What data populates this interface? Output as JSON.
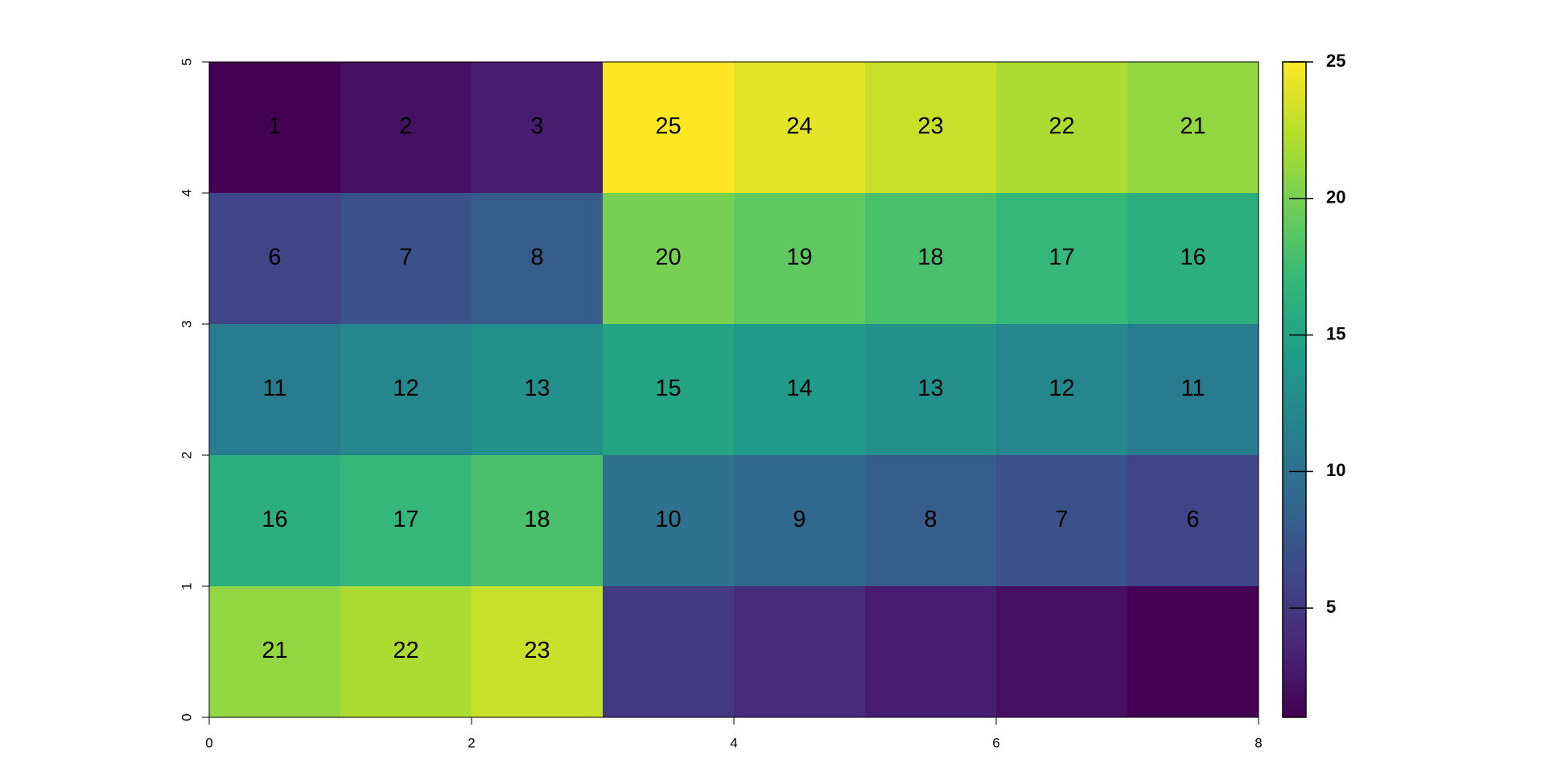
{
  "chart_data": {
    "type": "heatmap",
    "z": [
      [
        1,
        2,
        3,
        25,
        24,
        23,
        22,
        21
      ],
      [
        6,
        7,
        8,
        20,
        19,
        18,
        17,
        16
      ],
      [
        11,
        12,
        13,
        15,
        14,
        13,
        12,
        11
      ],
      [
        16,
        17,
        18,
        10,
        9,
        8,
        7,
        6
      ],
      [
        21,
        22,
        23,
        5,
        4,
        3,
        2,
        1
      ]
    ],
    "value_labels": [
      [
        "1",
        "2",
        "3",
        "25",
        "24",
        "23",
        "22",
        "21"
      ],
      [
        "6",
        "7",
        "8",
        "20",
        "19",
        "18",
        "17",
        "16"
      ],
      [
        "11",
        "12",
        "13",
        "15",
        "14",
        "13",
        "12",
        "11"
      ],
      [
        "16",
        "17",
        "18",
        "10",
        "9",
        "8",
        "7",
        "6"
      ],
      [
        "21",
        "22",
        "23",
        null,
        null,
        null,
        null,
        null
      ]
    ],
    "xlim": [
      0,
      8
    ],
    "xticks": [
      0,
      2,
      4,
      6,
      8
    ],
    "ylim": [
      0,
      5
    ],
    "yticks": [
      0,
      1,
      2,
      3,
      4,
      5
    ],
    "zlim": [
      1,
      25
    ],
    "zticks": [
      5,
      10,
      15,
      20,
      25
    ],
    "colormap": "viridis"
  }
}
